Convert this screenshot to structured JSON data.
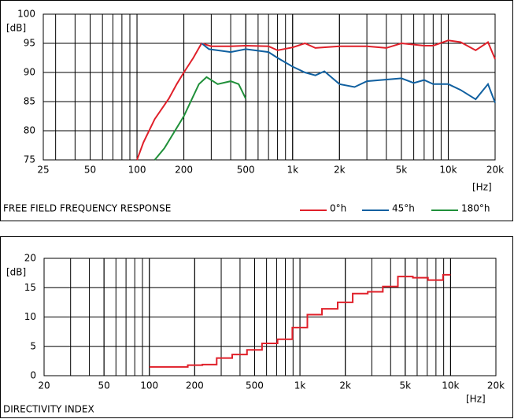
{
  "chart_data": [
    {
      "type": "line",
      "title": "FREE FIELD FREQUENCY RESPONSE",
      "y_unit": "[dB]",
      "x_unit": "[Hz]",
      "log_x": true,
      "grid": true,
      "xlim": [
        25,
        20000
      ],
      "ylim": [
        75,
        100
      ],
      "xticks": [
        25,
        50,
        100,
        200,
        500,
        {
          "value": 1000,
          "label": "1k"
        },
        {
          "value": 2000,
          "label": "2k"
        },
        {
          "value": 5000,
          "label": "5k"
        },
        {
          "value": 10000,
          "label": "10k"
        },
        {
          "value": 20000,
          "label": "20k"
        }
      ],
      "yticks": [
        75,
        80,
        85,
        90,
        95,
        100
      ],
      "series": [
        {
          "name": "0°h",
          "color": "#e0202a",
          "x": [
            100,
            110,
            130,
            160,
            180,
            200,
            230,
            260,
            300,
            400,
            500,
            700,
            800,
            1000,
            1200,
            1400,
            2000,
            3000,
            4000,
            5000,
            7000,
            8000,
            10000,
            12000,
            15000,
            18000,
            20000
          ],
          "values": [
            75,
            78,
            82,
            85.5,
            88,
            90,
            92.5,
            95,
            94.5,
            94.5,
            94.6,
            94.5,
            93.8,
            94.3,
            95,
            94.2,
            94.5,
            94.5,
            94.2,
            95,
            94.6,
            94.6,
            95.5,
            95.2,
            93.8,
            95.2,
            92.3
          ]
        },
        {
          "name": "45°h",
          "color": "#1060a0",
          "x": [
            260,
            290,
            400,
            500,
            700,
            800,
            1000,
            1200,
            1400,
            1600,
            2000,
            2500,
            3000,
            5000,
            6000,
            7000,
            8000,
            10000,
            12000,
            15000,
            18000,
            20000
          ],
          "values": [
            95,
            94,
            93.5,
            94,
            93.5,
            92.5,
            91,
            90,
            89.5,
            90.2,
            88,
            87.5,
            88.5,
            89,
            88.2,
            88.7,
            88,
            88,
            87,
            85.4,
            88,
            84.8
          ]
        },
        {
          "name": "180°h",
          "color": "#20903a",
          "x": [
            130,
            150,
            200,
            250,
            280,
            330,
            400,
            450,
            500
          ],
          "values": [
            75,
            77,
            82.5,
            88,
            89.2,
            88,
            88.5,
            88,
            85.5
          ]
        }
      ]
    },
    {
      "type": "step",
      "title": "DIRECTIVITY INDEX",
      "y_unit": "[dB]",
      "x_unit": "[Hz]",
      "log_x": true,
      "grid": true,
      "xlim": [
        20,
        20000
      ],
      "ylim": [
        0,
        20
      ],
      "xticks": [
        20,
        50,
        100,
        200,
        500,
        {
          "value": 1000,
          "label": "1k"
        },
        {
          "value": 2000,
          "label": "2k"
        },
        {
          "value": 5000,
          "label": "5k"
        },
        {
          "value": 10000,
          "label": "10k"
        },
        {
          "value": 20000,
          "label": "20k"
        }
      ],
      "yticks": [
        0,
        5,
        10,
        15,
        20
      ],
      "series": [
        {
          "color": "#e0202a",
          "x": [
            100,
            180,
            225,
            280,
            355,
            445,
            560,
            710,
            890,
            1120,
            1400,
            1780,
            2240,
            2820,
            3550,
            4470,
            5620,
            7080,
            8910,
            10000
          ],
          "values": [
            1.5,
            1.8,
            1.9,
            3,
            3.6,
            4.4,
            5.5,
            6.2,
            8.2,
            10.4,
            11.4,
            12.5,
            14,
            14.3,
            15.2,
            16.9,
            16.7,
            16.3,
            17.2,
            17.2
          ]
        }
      ]
    }
  ]
}
